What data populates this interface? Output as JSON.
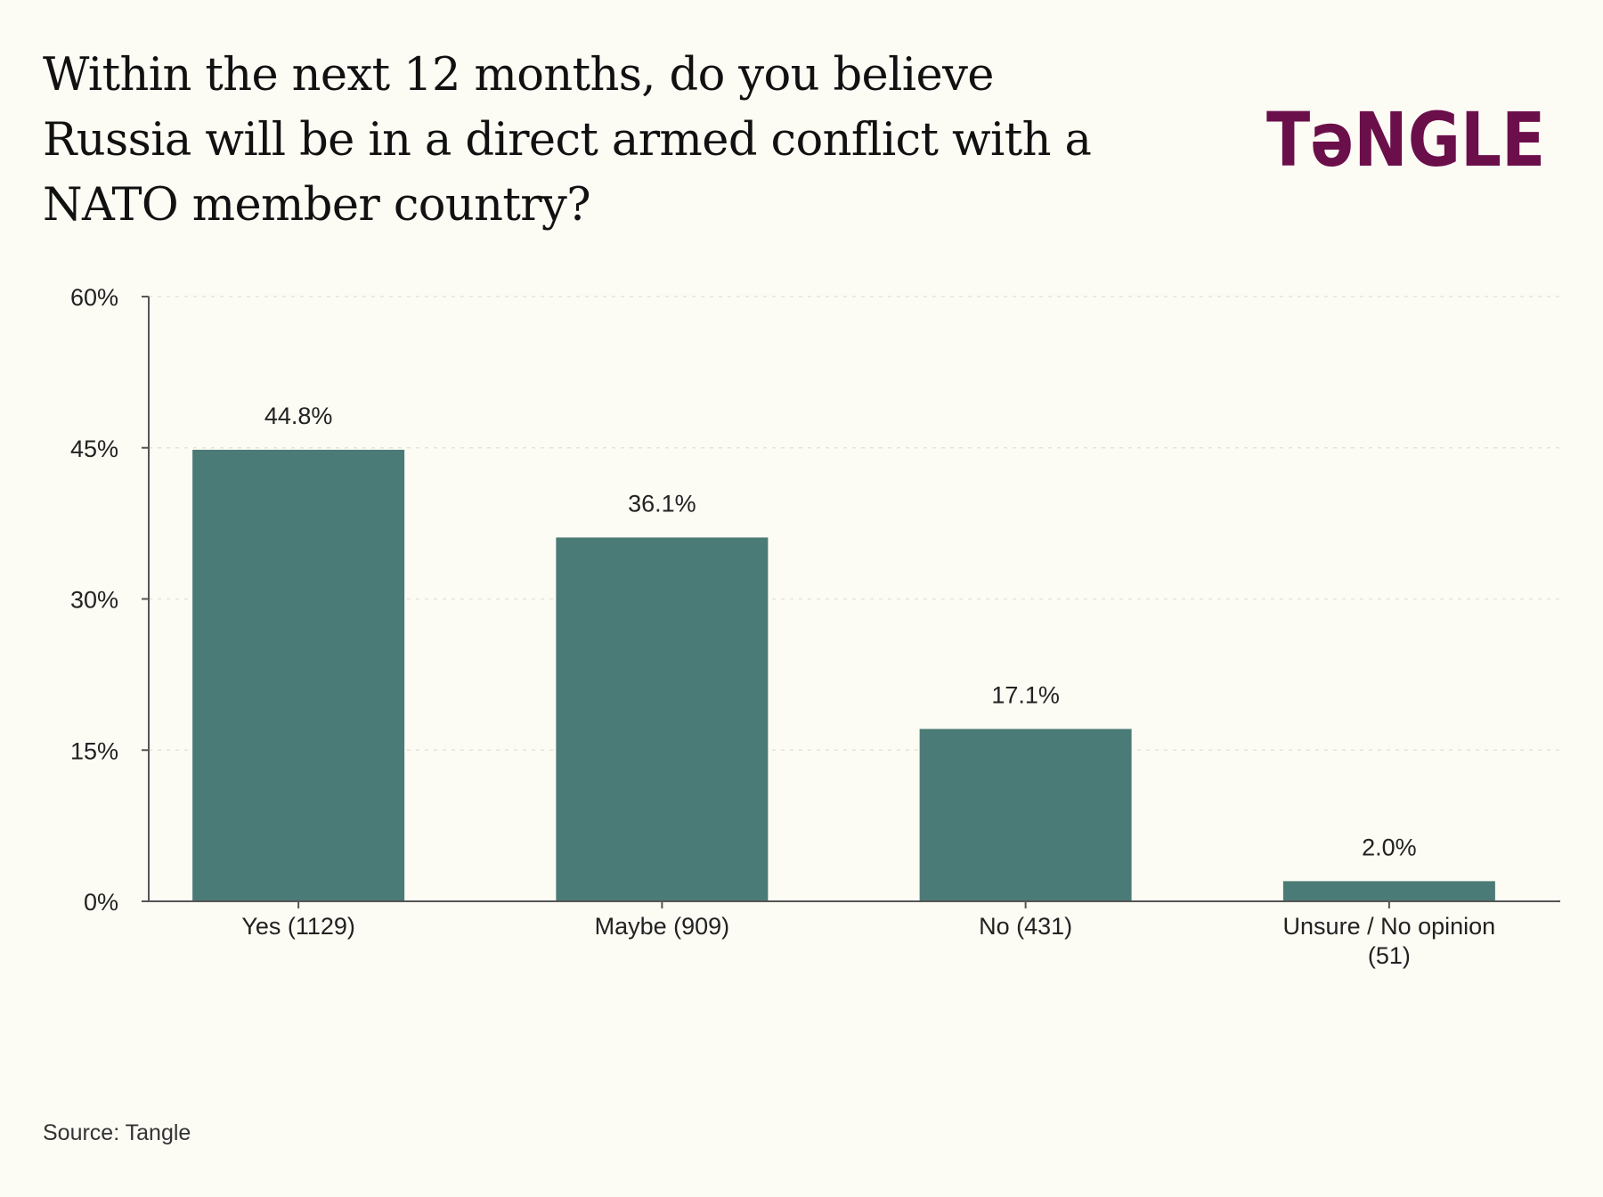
{
  "header": {
    "title": "Within the next 12 months, do you believe Russia will be in a direct armed conflict with a NATO member country?",
    "logo_text": "TəNGLE"
  },
  "footer": {
    "source": "Source: Tangle"
  },
  "colors": {
    "bar": "#4b7b76",
    "brand": "#6b0f4a",
    "background": "#fcfbf4",
    "axis": "#555555",
    "grid": "#e6e4da"
  },
  "chart_data": {
    "type": "bar",
    "title": "Within the next 12 months, do you believe Russia will be in a direct armed conflict with a NATO member country?",
    "categories": [
      "Yes (1129)",
      "Maybe (909)",
      "No (431)",
      "Unsure / No opinion (51)"
    ],
    "category_lines": [
      [
        "Yes (1129)"
      ],
      [
        "Maybe (909)"
      ],
      [
        "No (431)"
      ],
      [
        "Unsure / No opinion",
        "(51)"
      ]
    ],
    "values": [
      44.8,
      36.1,
      17.1,
      2.0
    ],
    "value_labels": [
      "44.8%",
      "36.1%",
      "17.1%",
      "2.0%"
    ],
    "ylim": [
      0,
      60
    ],
    "yticks": [
      0,
      15,
      30,
      45,
      60
    ],
    "ytick_labels": [
      "0%",
      "15%",
      "30%",
      "45%",
      "60%"
    ],
    "xlabel": "",
    "ylabel": "",
    "grid": true,
    "legend": "none"
  }
}
